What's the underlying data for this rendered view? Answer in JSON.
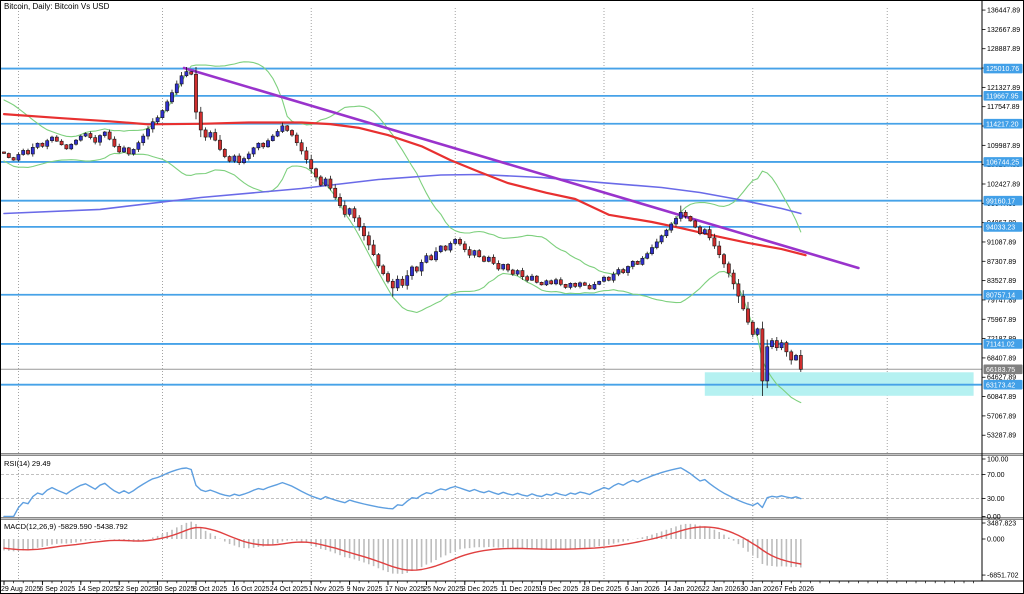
{
  "window": {
    "title": "Bitcoin, Daily: Bitcoin Vs USD"
  },
  "panes": {
    "rsi_label": "RSI(14) 29.49",
    "macd_label": "MACD(12,26,9) -5829.590 -5438.792"
  },
  "colors": {
    "background": "#ffffff",
    "frame": "#000000",
    "grid_dotted": "#8c8c8c",
    "sr_line": "#46a2e8",
    "badge_blue": "#42a0e8",
    "badge_gray": "#808080",
    "badge_text": "#ffffff",
    "current_price_line": "#999999",
    "bull_candle": "#3030cf",
    "bear_candle": "#cf2e2e",
    "candle_outline": "#151515",
    "bollinger": "#7ed07e",
    "ma_fast": "#e83030",
    "ma_slow": "#6a6ae8",
    "trendline": "#9933cc",
    "rsi_line": "#5e9fe0",
    "rsi_levels": "#c0c0c0",
    "macd_bar": "#bdbdbd",
    "macd_signal": "#e04040",
    "zone_fill": "#b5f1f1",
    "separator": "#8a8a8a",
    "axis_text": "#000000"
  },
  "chart_data": {
    "type": "candlestick",
    "title": "Bitcoin, Daily: Bitcoin Vs USD",
    "symbol": "Bitcoin Vs USD",
    "timeframe": "Daily",
    "ylim": [
      49800,
      136860
    ],
    "price_axis_labels": [
      "53287.89",
      "57067.89",
      "60847.89",
      "64627.89",
      "68407.89",
      "72187.89",
      "75967.89",
      "79747.89",
      "83527.89",
      "87307.89",
      "91087.89",
      "94867.89",
      "98647.89",
      "102427.89",
      "106207.89",
      "109987.89",
      "113767.89",
      "117547.89",
      "121327.89",
      "125107.89",
      "128887.89",
      "132667.89",
      "136447.89"
    ],
    "time_axis": {
      "labels": [
        "29 Aug 2025",
        "6 Sep 2025",
        "14 Sep 2025",
        "22 Sep 2025",
        "30 Sep 2025",
        "8 Oct 2025",
        "16 Oct 2025",
        "24 Oct 2025",
        "1 Nov 2025",
        "9 Nov 2025",
        "17 Nov 2025",
        "25 Nov 2025",
        "3 Dec 2025",
        "11 Dec 2025",
        "19 Dec 2025",
        "28 Dec 2025",
        "6 Jan 2026",
        "14 Jan 2026",
        "22 Jan 2026",
        "30 Jan 2026",
        "7 Feb 2026"
      ],
      "days": [
        0,
        8,
        16,
        24,
        32,
        40,
        48,
        56,
        64,
        72,
        80,
        88,
        96,
        104,
        112,
        121,
        130,
        138,
        146,
        154,
        162
      ]
    },
    "month_separator_days": [
      3,
      33,
      64,
      94,
      125,
      156,
      184
    ],
    "total_slots": 203,
    "open_first": 108700,
    "seed_closes": [
      117500,
      117200,
      116800,
      116300,
      115900,
      115400,
      114900,
      114300,
      113800,
      113200,
      112600,
      112000,
      111400,
      110800,
      110300,
      109800,
      109400,
      109000,
      108700
    ],
    "closes": [
      108400,
      107600,
      107100,
      108200,
      109000,
      108300,
      109600,
      110400,
      109800,
      110900,
      111600,
      110800,
      110100,
      109300,
      110200,
      111000,
      111800,
      112300,
      111500,
      110600,
      111900,
      112600,
      111200,
      109800,
      108700,
      109500,
      108300,
      109200,
      110500,
      111800,
      113200,
      114600,
      115400,
      116800,
      118500,
      120300,
      122000,
      123600,
      124400,
      123900,
      116500,
      113000,
      111600,
      112500,
      111000,
      109200,
      107800,
      106900,
      107900,
      106600,
      107400,
      108300,
      109500,
      110400,
      109700,
      110900,
      111800,
      112700,
      113800,
      112900,
      112000,
      110500,
      108900,
      107200,
      105400,
      103800,
      102200,
      103400,
      101600,
      99800,
      98200,
      96500,
      97600,
      95800,
      94100,
      92300,
      90500,
      88600,
      86400,
      84900,
      83400,
      82100,
      83800,
      82600,
      84500,
      86200,
      85400,
      87100,
      88400,
      87600,
      89200,
      90300,
      89500,
      90800,
      91600,
      90700,
      89600,
      88500,
      89400,
      88200,
      87300,
      88100,
      86900,
      85800,
      86700,
      85600,
      84800,
      85500,
      84300,
      83600,
      84400,
      83200,
      82700,
      83500,
      82900,
      83700,
      82800,
      82200,
      83000,
      82400,
      83100,
      82600,
      81900,
      82800,
      83400,
      84200,
      83600,
      84800,
      85700,
      85100,
      86300,
      87300,
      86700,
      87900,
      88800,
      90000,
      91100,
      92300,
      93400,
      94600,
      95700,
      96900,
      96100,
      95200,
      94000,
      92700,
      93500,
      91900,
      90300,
      88600,
      86800,
      85000,
      82900,
      80500,
      78000,
      75400,
      73000,
      74100,
      63900,
      70600,
      71800,
      70400,
      71400,
      69600,
      68000,
      68900,
      66183.75
    ],
    "special_wicks": {
      "38": {
        "high": 125300
      },
      "81": {
        "low": 80400
      },
      "141": {
        "high": 98200
      },
      "158": {
        "low": 60960
      }
    },
    "sr_levels": [
      125010.76,
      119667.95,
      114217.2,
      106744.25,
      99160.17,
      94033.23,
      80757.14,
      71141.02,
      63173.42
    ],
    "current_price": 66183.75,
    "zone": {
      "day_start": 146,
      "day_end": 202,
      "price_top": 65600,
      "price_bottom": 61000
    },
    "trendline": {
      "day_start": 37.5,
      "price_start": 125116,
      "day_end": 178,
      "price_end": 86000
    },
    "ma_fast_points": [
      [
        0,
        116100
      ],
      [
        12,
        115300
      ],
      [
        22,
        114700
      ],
      [
        30,
        114100
      ],
      [
        41,
        114200
      ],
      [
        51,
        114450
      ],
      [
        62,
        114450
      ],
      [
        68,
        114150
      ],
      [
        74,
        113400
      ],
      [
        80,
        112000
      ],
      [
        87,
        109800
      ],
      [
        93,
        107100
      ],
      [
        99,
        104800
      ],
      [
        105,
        102600
      ],
      [
        113,
        100700
      ],
      [
        119,
        99500
      ],
      [
        126,
        96400
      ],
      [
        135,
        95000
      ],
      [
        141,
        93800
      ],
      [
        149,
        92100
      ],
      [
        155,
        90900
      ],
      [
        162,
        89700
      ],
      [
        167,
        88500
      ]
    ],
    "ma_slow_points": [
      [
        0,
        96660
      ],
      [
        20,
        97450
      ],
      [
        41,
        99790
      ],
      [
        62,
        101550
      ],
      [
        78,
        103310
      ],
      [
        91,
        104190
      ],
      [
        99,
        104290
      ],
      [
        112,
        103700
      ],
      [
        124,
        102730
      ],
      [
        137,
        101750
      ],
      [
        145,
        100770
      ],
      [
        153,
        99400
      ],
      [
        162,
        97640
      ],
      [
        166,
        96660
      ]
    ],
    "bollinger": {
      "period": 20,
      "deviation": 2
    },
    "rsi": {
      "period": 14,
      "last_value": 29.49,
      "levels": [
        100,
        70,
        30,
        0
      ]
    },
    "macd": {
      "fast": 12,
      "slow": 26,
      "signal": 9,
      "macd_last": -5829.59,
      "signal_last": -5438.792,
      "axis_labels": [
        "3487.823",
        "0.000",
        "-6851.702"
      ],
      "axis_values": [
        3487.823,
        0,
        -6851.702
      ]
    }
  }
}
